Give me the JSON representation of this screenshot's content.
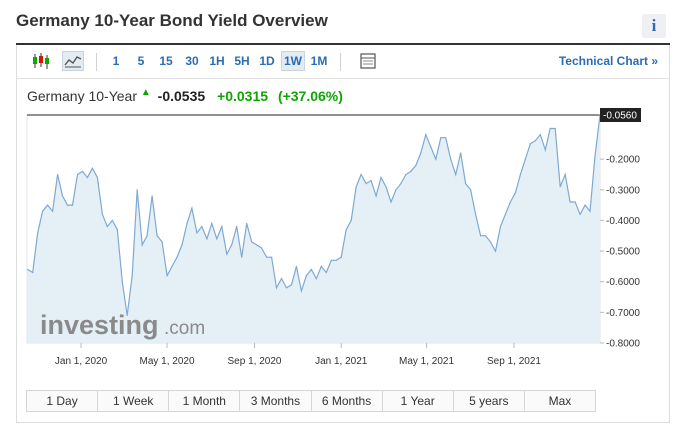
{
  "header": {
    "title": "Germany 10-Year Bond Yield Overview",
    "info_label": "i"
  },
  "toolbar": {
    "periods": [
      "1",
      "5",
      "15",
      "30",
      "1H",
      "5H",
      "1D",
      "1W",
      "1M"
    ],
    "active_period": "1W",
    "technical_chart_label": "Technical Chart »"
  },
  "quote": {
    "name": "Germany 10-Year",
    "last": "-0.0535",
    "change": "+0.0315",
    "change_pct": "(+37.06%)"
  },
  "watermark": {
    "brand": "investing",
    "suffix": ".com"
  },
  "ranges": [
    "1 Day",
    "1 Week",
    "1 Month",
    "3 Months",
    "6 Months",
    "1 Year",
    "5 years",
    "Max"
  ],
  "colors": {
    "up": "#0ea600",
    "link": "#2a6db5",
    "line": "#7fa9d1",
    "area": "#e5eff6"
  },
  "chart_data": {
    "type": "area",
    "ylim": [
      -0.8,
      -0.056
    ],
    "xlim": [
      "2019-10-17",
      "2021-12-31"
    ],
    "y_ticks": [
      "-0.2000",
      "-0.3000",
      "-0.4000",
      "-0.5000",
      "-0.6000",
      "-0.7000",
      "-0.8000"
    ],
    "x_ticks": [
      "Jan 1, 2020",
      "May 1, 2020",
      "Sep 1, 2020",
      "Jan 1, 2021",
      "May 1, 2021",
      "Sep 1, 2021"
    ],
    "last_value_label": "-0.0560",
    "last_value": -0.056,
    "x": [
      "2019-10-18",
      "2019-10-25",
      "2019-11-01",
      "2019-11-08",
      "2019-11-15",
      "2019-11-22",
      "2019-11-29",
      "2019-12-06",
      "2019-12-13",
      "2019-12-20",
      "2019-12-27",
      "2020-01-03",
      "2020-01-10",
      "2020-01-17",
      "2020-01-24",
      "2020-01-31",
      "2020-02-07",
      "2020-02-14",
      "2020-02-21",
      "2020-02-28",
      "2020-03-06",
      "2020-03-13",
      "2020-03-20",
      "2020-03-27",
      "2020-04-03",
      "2020-04-10",
      "2020-04-17",
      "2020-04-24",
      "2020-05-01",
      "2020-05-08",
      "2020-05-15",
      "2020-05-22",
      "2020-05-29",
      "2020-06-05",
      "2020-06-12",
      "2020-06-19",
      "2020-06-26",
      "2020-07-03",
      "2020-07-10",
      "2020-07-17",
      "2020-07-24",
      "2020-07-31",
      "2020-08-07",
      "2020-08-14",
      "2020-08-21",
      "2020-08-28",
      "2020-09-04",
      "2020-09-11",
      "2020-09-18",
      "2020-09-25",
      "2020-10-02",
      "2020-10-09",
      "2020-10-16",
      "2020-10-23",
      "2020-10-30",
      "2020-11-06",
      "2020-11-13",
      "2020-11-20",
      "2020-11-27",
      "2020-12-04",
      "2020-12-11",
      "2020-12-18",
      "2020-12-25",
      "2021-01-01",
      "2021-01-08",
      "2021-01-15",
      "2021-01-22",
      "2021-01-29",
      "2021-02-05",
      "2021-02-12",
      "2021-02-19",
      "2021-02-26",
      "2021-03-05",
      "2021-03-12",
      "2021-03-19",
      "2021-03-26",
      "2021-04-02",
      "2021-04-09",
      "2021-04-16",
      "2021-04-23",
      "2021-04-30",
      "2021-05-07",
      "2021-05-14",
      "2021-05-21",
      "2021-05-28",
      "2021-06-04",
      "2021-06-11",
      "2021-06-18",
      "2021-06-25",
      "2021-07-02",
      "2021-07-09",
      "2021-07-16",
      "2021-07-23",
      "2021-07-30",
      "2021-08-06",
      "2021-08-13",
      "2021-08-20",
      "2021-08-27",
      "2021-09-03",
      "2021-09-10",
      "2021-09-17",
      "2021-09-24",
      "2021-10-01",
      "2021-10-08",
      "2021-10-15",
      "2021-10-22",
      "2021-10-29",
      "2021-11-05",
      "2021-11-12",
      "2021-11-19",
      "2021-11-26",
      "2021-12-03",
      "2021-12-10",
      "2021-12-17",
      "2021-12-24",
      "2021-12-31"
    ],
    "values": [
      -0.56,
      -0.57,
      -0.44,
      -0.37,
      -0.35,
      -0.37,
      -0.25,
      -0.32,
      -0.35,
      -0.35,
      -0.25,
      -0.24,
      -0.26,
      -0.23,
      -0.26,
      -0.38,
      -0.42,
      -0.4,
      -0.43,
      -0.6,
      -0.71,
      -0.58,
      -0.3,
      -0.48,
      -0.45,
      -0.32,
      -0.45,
      -0.47,
      -0.58,
      -0.55,
      -0.52,
      -0.48,
      -0.41,
      -0.36,
      -0.44,
      -0.42,
      -0.46,
      -0.41,
      -0.46,
      -0.42,
      -0.51,
      -0.48,
      -0.42,
      -0.52,
      -0.41,
      -0.47,
      -0.48,
      -0.49,
      -0.52,
      -0.52,
      -0.62,
      -0.59,
      -0.62,
      -0.61,
      -0.55,
      -0.63,
      -0.58,
      -0.56,
      -0.59,
      -0.55,
      -0.57,
      -0.53,
      -0.53,
      -0.52,
      -0.43,
      -0.4,
      -0.29,
      -0.25,
      -0.28,
      -0.27,
      -0.32,
      -0.26,
      -0.29,
      -0.34,
      -0.3,
      -0.28,
      -0.25,
      -0.24,
      -0.22,
      -0.18,
      -0.12,
      -0.16,
      -0.2,
      -0.13,
      -0.13,
      -0.2,
      -0.25,
      -0.18,
      -0.28,
      -0.3,
      -0.38,
      -0.45,
      -0.45,
      -0.47,
      -0.5,
      -0.42,
      -0.38,
      -0.34,
      -0.31,
      -0.25,
      -0.2,
      -0.15,
      -0.14,
      -0.12,
      -0.17,
      -0.1,
      -0.1,
      -0.29,
      -0.25,
      -0.34,
      -0.34,
      -0.38,
      -0.35,
      -0.37,
      -0.19,
      -0.056
    ]
  }
}
